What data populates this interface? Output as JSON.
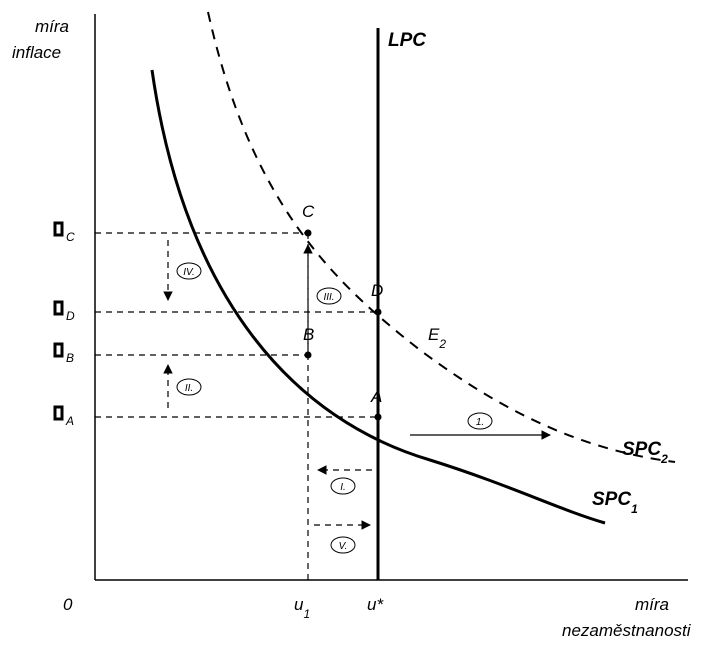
{
  "axes": {
    "y_title_line1": "míra",
    "y_title_line2": "inflace",
    "x_title_line1": "míra",
    "x_title_line2": "nezaměstnanosti",
    "origin": "0",
    "x_tick_u1": "u",
    "x_tick_u1_sub": "1",
    "x_tick_ustar": "u*"
  },
  "y_ticks": [
    {
      "glyph": "▯",
      "sub": "C"
    },
    {
      "glyph": "▯",
      "sub": "D"
    },
    {
      "glyph": "▯",
      "sub": "B"
    },
    {
      "glyph": "▯",
      "sub": "A"
    }
  ],
  "curves": {
    "lpc": "LPC",
    "spc1": "SPC",
    "spc1_sub": "1",
    "spc2": "SPC",
    "spc2_sub": "2",
    "e2": "E",
    "e2_sub": "2"
  },
  "points": {
    "A": "A",
    "B": "B",
    "C": "C",
    "D": "D"
  },
  "steps": {
    "s1": "1.",
    "sI": "I.",
    "sII": "II.",
    "sIII": "III.",
    "sIV": "IV.",
    "sV": "V."
  }
}
